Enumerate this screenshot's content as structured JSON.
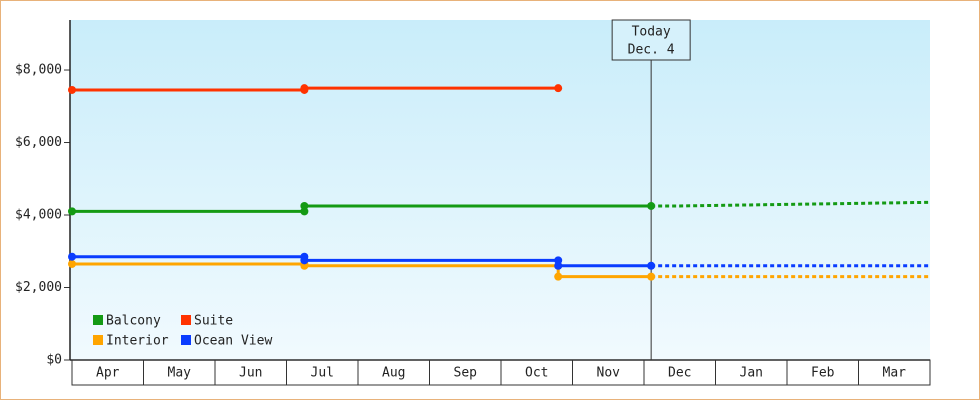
{
  "chart_data": {
    "type": "step-line",
    "categories": [
      "Apr",
      "May",
      "Jun",
      "Jul",
      "Aug",
      "Sep",
      "Oct",
      "Nov",
      "Dec",
      "Jan",
      "Feb",
      "Mar"
    ],
    "xlim": [
      0,
      12
    ],
    "ylim": [
      0,
      9380
    ],
    "yticks": [
      {
        "value": 0,
        "label": "$0"
      },
      {
        "value": 2000,
        "label": "$2,000"
      },
      {
        "value": 4000,
        "label": "$4,000"
      },
      {
        "value": 6000,
        "label": "$6,000"
      },
      {
        "value": 8000,
        "label": "$8,000"
      }
    ],
    "legend": "lower-left",
    "annotation": {
      "x": 8.1,
      "lines": [
        "Today",
        "Dec. 4"
      ]
    },
    "series": [
      {
        "name": "Balcony",
        "color": "#149a14",
        "x": [
          0,
          3.25,
          3.25,
          8.1
        ],
        "values": [
          4100,
          4100,
          4250,
          4250
        ],
        "forecast": {
          "x": [
            8.1,
            8.5,
            12
          ],
          "values": [
            4250,
            4250,
            4350
          ]
        }
      },
      {
        "name": "Suite",
        "color": "#ff3300",
        "x": [
          0,
          3.25,
          3.25,
          6.8
        ],
        "values": [
          7450,
          7450,
          7500,
          7500
        ]
      },
      {
        "name": "Interior",
        "color": "#ffa500",
        "x": [
          0,
          3.25,
          3.25,
          6.8,
          6.8,
          8.1
        ],
        "values": [
          2650,
          2650,
          2600,
          2600,
          2300,
          2300
        ],
        "forecast": {
          "x": [
            8.1,
            12
          ],
          "values": [
            2300,
            2300
          ]
        }
      },
      {
        "name": "Ocean View",
        "color": "#0a3cff",
        "x": [
          0,
          3.25,
          3.25,
          6.8,
          6.8,
          8.1
        ],
        "values": [
          2850,
          2850,
          2750,
          2750,
          2600,
          2600
        ],
        "forecast": {
          "x": [
            8.1,
            12
          ],
          "values": [
            2600,
            2600
          ]
        }
      }
    ]
  }
}
